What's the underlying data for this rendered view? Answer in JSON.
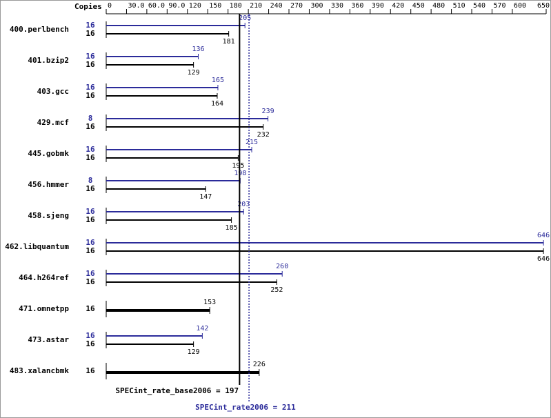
{
  "chart_data": {
    "type": "spec-rate",
    "axis_label": "Copies",
    "xlim": [
      0,
      650
    ],
    "xticks": [
      0,
      {
        "value": 30,
        "label": "30.0"
      },
      {
        "value": 60,
        "label": "60.0"
      },
      {
        "value": 90,
        "label": "90.0"
      },
      120,
      150,
      180,
      210,
      240,
      270,
      300,
      330,
      360,
      390,
      420,
      450,
      480,
      510,
      540,
      570,
      600,
      650
    ],
    "categories": [
      "400.perlbench",
      "401.bzip2",
      "403.gcc",
      "429.mcf",
      "445.gobmk",
      "456.hmmer",
      "458.sjeng",
      "462.libquantum",
      "464.h264ref",
      "471.omnetpp",
      "473.astar",
      "483.xalancbmk"
    ],
    "series": [
      {
        "color": "#2b2b9a",
        "copies": [
          16,
          16,
          16,
          8,
          16,
          8,
          16,
          16,
          16,
          null,
          16,
          null
        ],
        "values": [
          205,
          136,
          165,
          239,
          215,
          198,
          203,
          646,
          260,
          null,
          142,
          null
        ]
      },
      {
        "color": "#000000",
        "copies": [
          16,
          16,
          16,
          16,
          16,
          16,
          16,
          16,
          16,
          16,
          16,
          16
        ],
        "values": [
          181,
          129,
          164,
          232,
          195,
          147,
          185,
          646,
          252,
          153,
          129,
          226
        ]
      }
    ],
    "reference_lines": [
      {
        "label": "SPECint_rate_base2006 = 197",
        "value": 197,
        "color": "#000000"
      },
      {
        "label": "SPECint_rate2006 = 211",
        "value": 211,
        "color": "#2b2b9a"
      }
    ]
  }
}
